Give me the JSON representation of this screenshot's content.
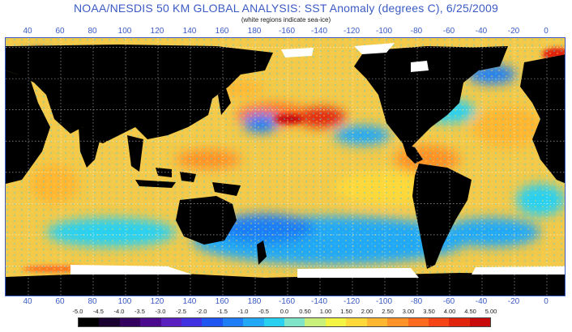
{
  "header": {
    "title": "NOAA/NESDIS 50 KM GLOBAL ANALYSIS: SST Anomaly (degrees C), 6/25/2009",
    "subtitle": "(white regions indicate sea-ice)"
  },
  "axis": {
    "longitude_labels": [
      "40",
      "60",
      "80",
      "100",
      "120",
      "140",
      "160",
      "180",
      "-160",
      "-140",
      "-120",
      "-100",
      "-80",
      "-60",
      "-40",
      "-20",
      "0"
    ],
    "longitude_values": [
      40,
      60,
      80,
      100,
      120,
      140,
      160,
      180,
      200,
      220,
      240,
      260,
      280,
      300,
      320,
      340,
      360
    ],
    "lon_range": [
      26,
      372
    ],
    "lat_range": [
      -80,
      86
    ]
  },
  "colorbar": {
    "labels": [
      "-5.0",
      "-4.5",
      "-4.0",
      "-3.5",
      "-3.0",
      "-2.5",
      "-2.0",
      "-1.5",
      "-1.0",
      "-0.5",
      "0.0",
      "0.50",
      "1.00",
      "1.50",
      "2.00",
      "2.50",
      "3.00",
      "3.50",
      "4.00",
      "4.50",
      "5.00"
    ],
    "colors": [
      "#000000",
      "#1a0030",
      "#34005e",
      "#4b0a8e",
      "#5a1fbf",
      "#4032e0",
      "#1f55f0",
      "#1f7df5",
      "#22a8f5",
      "#2ad0f0",
      "#7fe4c8",
      "#c8f07a",
      "#f4f442",
      "#ffd93a",
      "#ffb631",
      "#ff9228",
      "#ff6b1e",
      "#f54416",
      "#e0240e",
      "#c80a0a"
    ]
  },
  "map": {
    "ocean_base_color": "#f2c94a",
    "land_color": "#000000",
    "ice_color": "#ffffff",
    "frame_color": "#3b5bc4"
  }
}
